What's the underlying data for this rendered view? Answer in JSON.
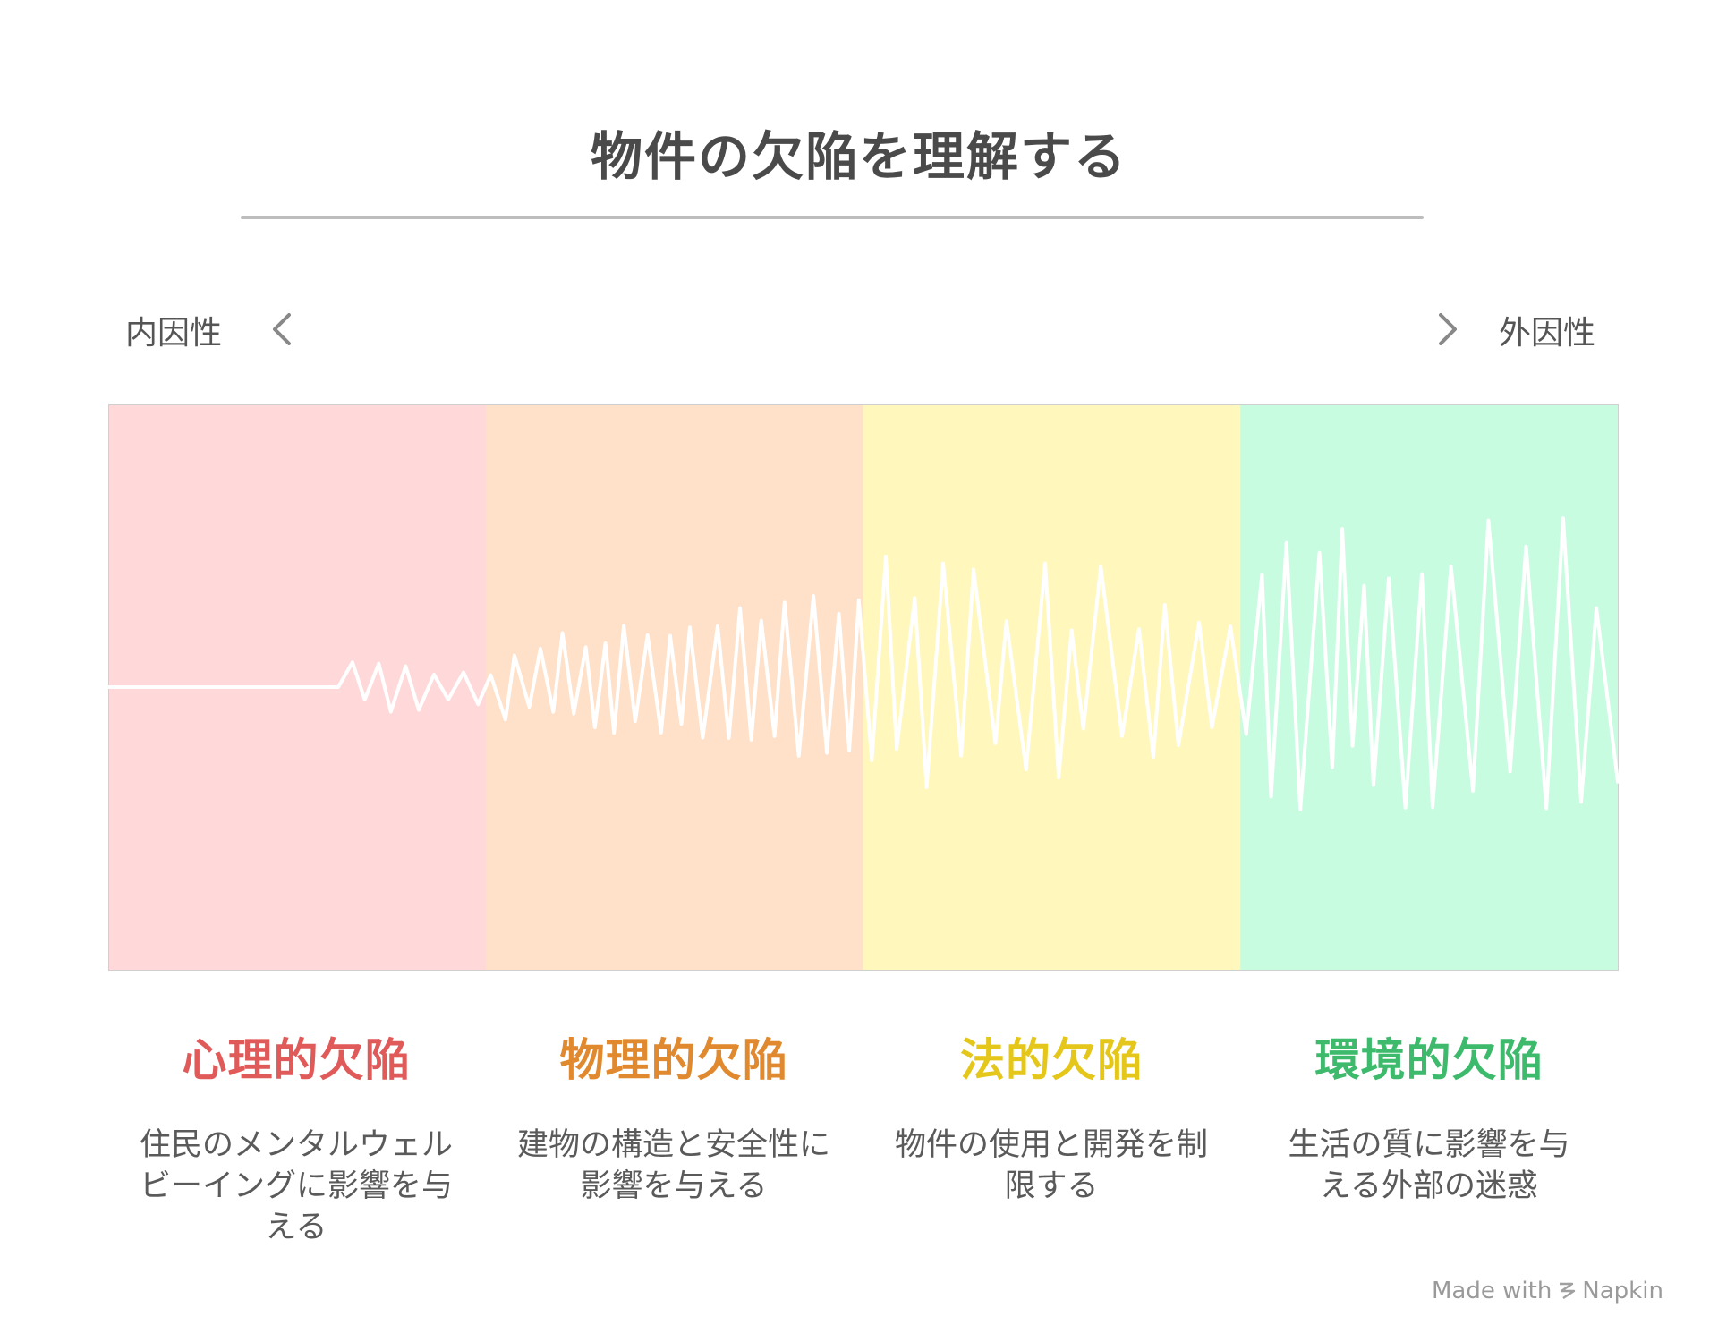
{
  "title": "物件の欠陥を理解する",
  "axis": {
    "left_label": "内因性",
    "right_label": "外因性",
    "left_icon": "chevron-left-icon",
    "right_icon": "chevron-right-icon"
  },
  "categories": [
    {
      "title": "心理的欠陥",
      "description": "住民のメンタルウェルビーイングに影響を与える",
      "color": "#e05a5a",
      "band_color": "#ffd9d9"
    },
    {
      "title": "物理的欠陥",
      "description": "建物の構造と安全性に影響を与える",
      "color": "#e0892e",
      "band_color": "#ffe0c8"
    },
    {
      "title": "法的欠陥",
      "description": "物件の使用と開発を制限する",
      "color": "#e4c71a",
      "band_color": "#fff7bb"
    },
    {
      "title": "環境的欠陥",
      "description": "生活の質に影響を与える外部の迷惑",
      "color": "#3dba6c",
      "band_color": "#c8fce0"
    }
  ],
  "footer": {
    "text_before": "Made with",
    "brand": "Napkin",
    "icon": "napkin-logo-icon"
  }
}
